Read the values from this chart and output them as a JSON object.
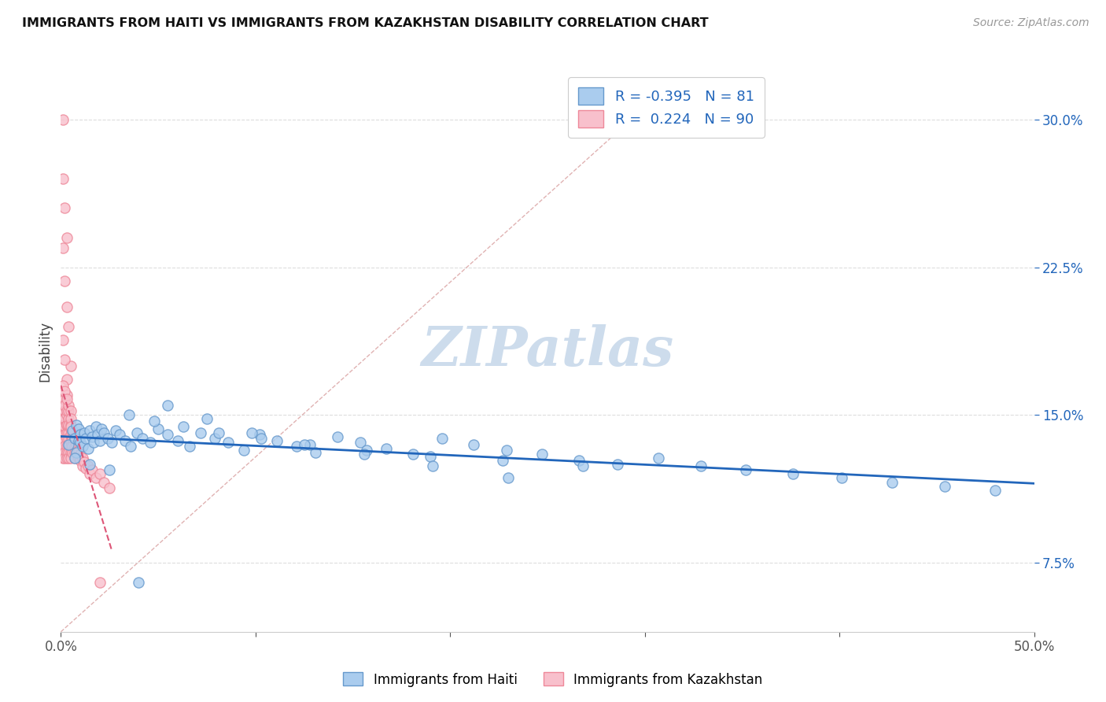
{
  "title": "IMMIGRANTS FROM HAITI VS IMMIGRANTS FROM KAZAKHSTAN DISABILITY CORRELATION CHART",
  "source_text": "Source: ZipAtlas.com",
  "ylabel": "Disability",
  "xlim": [
    0.0,
    0.5
  ],
  "ylim": [
    0.04,
    0.325
  ],
  "yticks": [
    0.075,
    0.15,
    0.225,
    0.3
  ],
  "ytick_labels": [
    "7.5%",
    "15.0%",
    "22.5%",
    "30.0%"
  ],
  "xticks": [
    0.0,
    0.1,
    0.2,
    0.3,
    0.4,
    0.5
  ],
  "xtick_labels": [
    "0.0%",
    "",
    "",
    "",
    "",
    "50.0%"
  ],
  "haiti_R": -0.395,
  "haiti_N": 81,
  "kazakhstan_R": 0.224,
  "kazakhstan_N": 90,
  "haiti_dot_facecolor": "#aaccee",
  "haiti_dot_edgecolor": "#6699cc",
  "kaz_dot_facecolor": "#f8c0cc",
  "kaz_dot_edgecolor": "#ee8899",
  "trend_haiti_color": "#2266bb",
  "trend_kaz_color": "#dd5577",
  "diag_color": "#ddaaaa",
  "watermark_text": "ZIPatlas",
  "watermark_color": "#cddcec",
  "legend_haiti_label": "Immigrants from Haiti",
  "legend_kaz_label": "Immigrants from Kazakhstan",
  "title_color": "#111111",
  "source_color": "#999999",
  "ylabel_color": "#444444",
  "ytick_color": "#2266bb",
  "grid_color": "#dddddd",
  "haiti_x": [
    0.004,
    0.006,
    0.007,
    0.008,
    0.008,
    0.009,
    0.009,
    0.01,
    0.01,
    0.011,
    0.012,
    0.013,
    0.014,
    0.015,
    0.016,
    0.017,
    0.018,
    0.019,
    0.02,
    0.021,
    0.022,
    0.024,
    0.026,
    0.028,
    0.03,
    0.033,
    0.036,
    0.039,
    0.042,
    0.046,
    0.05,
    0.055,
    0.06,
    0.066,
    0.072,
    0.079,
    0.086,
    0.094,
    0.102,
    0.111,
    0.121,
    0.131,
    0.142,
    0.154,
    0.167,
    0.181,
    0.196,
    0.212,
    0.229,
    0.247,
    0.266,
    0.286,
    0.307,
    0.329,
    0.352,
    0.376,
    0.401,
    0.427,
    0.454,
    0.48,
    0.035,
    0.048,
    0.063,
    0.081,
    0.103,
    0.128,
    0.157,
    0.19,
    0.227,
    0.268,
    0.055,
    0.075,
    0.098,
    0.125,
    0.156,
    0.191,
    0.23,
    0.007,
    0.015,
    0.025,
    0.04
  ],
  "haiti_y": [
    0.135,
    0.142,
    0.138,
    0.131,
    0.145,
    0.137,
    0.143,
    0.14,
    0.136,
    0.134,
    0.141,
    0.138,
    0.133,
    0.142,
    0.139,
    0.136,
    0.144,
    0.14,
    0.137,
    0.143,
    0.141,
    0.138,
    0.136,
    0.142,
    0.14,
    0.137,
    0.134,
    0.141,
    0.138,
    0.136,
    0.143,
    0.14,
    0.137,
    0.134,
    0.141,
    0.138,
    0.136,
    0.132,
    0.14,
    0.137,
    0.134,
    0.131,
    0.139,
    0.136,
    0.133,
    0.13,
    0.138,
    0.135,
    0.132,
    0.13,
    0.127,
    0.125,
    0.128,
    0.124,
    0.122,
    0.12,
    0.118,
    0.116,
    0.114,
    0.112,
    0.15,
    0.147,
    0.144,
    0.141,
    0.138,
    0.135,
    0.132,
    0.129,
    0.127,
    0.124,
    0.155,
    0.148,
    0.141,
    0.135,
    0.13,
    0.124,
    0.118,
    0.128,
    0.125,
    0.122,
    0.065
  ],
  "kazakhstan_x": [
    0.001,
    0.001,
    0.001,
    0.001,
    0.001,
    0.001,
    0.001,
    0.001,
    0.001,
    0.001,
    0.002,
    0.002,
    0.002,
    0.002,
    0.002,
    0.002,
    0.002,
    0.002,
    0.002,
    0.002,
    0.003,
    0.003,
    0.003,
    0.003,
    0.003,
    0.003,
    0.003,
    0.003,
    0.003,
    0.003,
    0.004,
    0.004,
    0.004,
    0.004,
    0.004,
    0.004,
    0.004,
    0.004,
    0.004,
    0.004,
    0.005,
    0.005,
    0.005,
    0.005,
    0.005,
    0.005,
    0.005,
    0.005,
    0.005,
    0.005,
    0.006,
    0.006,
    0.006,
    0.006,
    0.007,
    0.007,
    0.007,
    0.007,
    0.008,
    0.008,
    0.009,
    0.009,
    0.01,
    0.01,
    0.011,
    0.011,
    0.012,
    0.013,
    0.014,
    0.015,
    0.016,
    0.018,
    0.02,
    0.022,
    0.025,
    0.001,
    0.002,
    0.003,
    0.004,
    0.005,
    0.001,
    0.002,
    0.003,
    0.001,
    0.002,
    0.003,
    0.001,
    0.002,
    0.003,
    0.02
  ],
  "kazakhstan_y": [
    0.3,
    0.155,
    0.148,
    0.143,
    0.14,
    0.137,
    0.134,
    0.131,
    0.128,
    0.145,
    0.158,
    0.152,
    0.148,
    0.144,
    0.14,
    0.137,
    0.134,
    0.131,
    0.128,
    0.155,
    0.15,
    0.145,
    0.141,
    0.138,
    0.134,
    0.131,
    0.128,
    0.145,
    0.152,
    0.16,
    0.148,
    0.144,
    0.141,
    0.138,
    0.134,
    0.131,
    0.128,
    0.145,
    0.152,
    0.155,
    0.143,
    0.14,
    0.137,
    0.134,
    0.131,
    0.128,
    0.145,
    0.152,
    0.148,
    0.144,
    0.141,
    0.138,
    0.134,
    0.131,
    0.138,
    0.134,
    0.131,
    0.128,
    0.135,
    0.131,
    0.132,
    0.128,
    0.13,
    0.127,
    0.128,
    0.124,
    0.126,
    0.123,
    0.124,
    0.12,
    0.122,
    0.118,
    0.12,
    0.116,
    0.113,
    0.235,
    0.218,
    0.205,
    0.195,
    0.175,
    0.27,
    0.255,
    0.24,
    0.188,
    0.178,
    0.168,
    0.165,
    0.162,
    0.158,
    0.065
  ]
}
